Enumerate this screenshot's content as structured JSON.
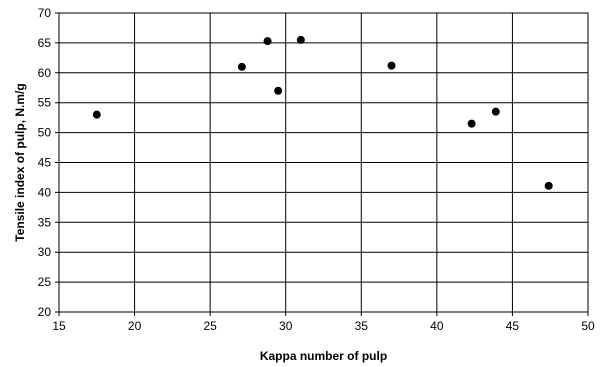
{
  "chart_data": {
    "type": "scatter",
    "xlabel": "Kappa number of pulp",
    "ylabel": "Tensile index of pulp, N.m/g",
    "xlim": [
      15,
      50
    ],
    "ylim": [
      20,
      70
    ],
    "xticks": [
      15,
      20,
      25,
      30,
      35,
      40,
      45,
      50
    ],
    "yticks": [
      20,
      25,
      30,
      35,
      40,
      45,
      50,
      55,
      60,
      65,
      70
    ],
    "grid": true,
    "legend": "none",
    "marker_color": "#000000",
    "series": [
      {
        "points": [
          {
            "x": 17.5,
            "y": 53.0
          },
          {
            "x": 27.1,
            "y": 61.0
          },
          {
            "x": 28.8,
            "y": 65.3
          },
          {
            "x": 29.5,
            "y": 57.0
          },
          {
            "x": 31.0,
            "y": 65.5
          },
          {
            "x": 37.0,
            "y": 61.2
          },
          {
            "x": 42.3,
            "y": 51.5
          },
          {
            "x": 43.9,
            "y": 53.5
          },
          {
            "x": 47.4,
            "y": 41.1
          }
        ]
      }
    ]
  }
}
